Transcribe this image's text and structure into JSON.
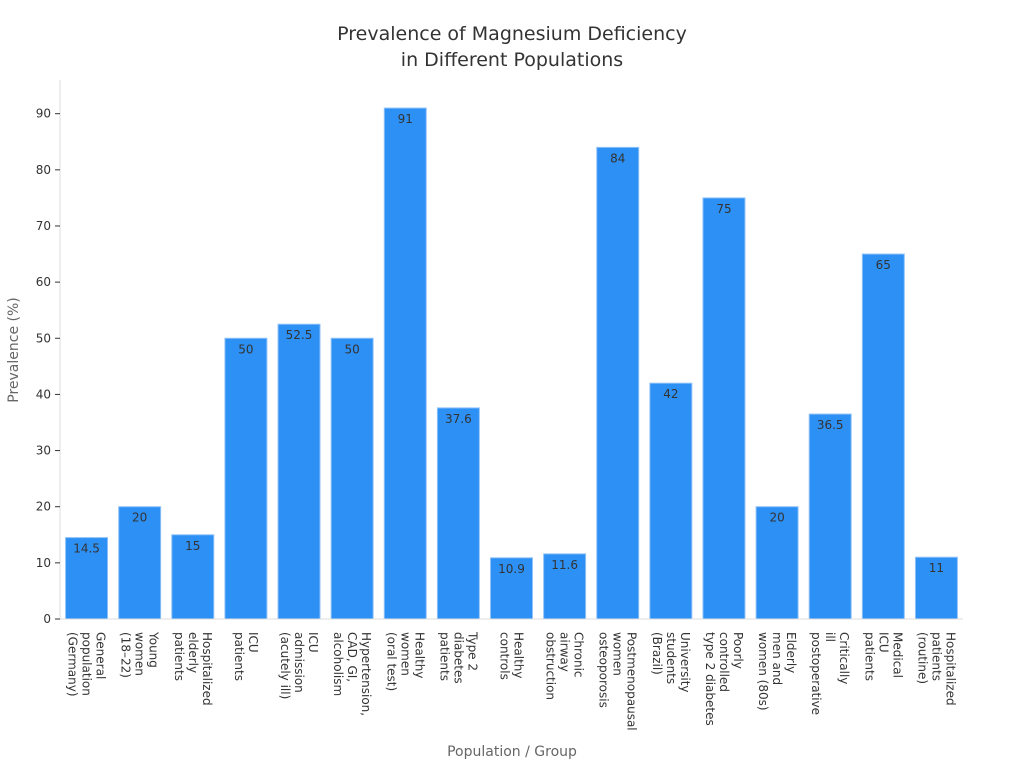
{
  "chart_data": {
    "type": "bar",
    "title": "Prevalence of Magnesium Deficiency\nin Different Populations",
    "x_label": "Population / Group",
    "y_label": "Prevalence (%)",
    "categories": [
      "General\npopulation\n(Germany)",
      "Young\nwomen\n(18–22)",
      "Hospitalized\nelderly\npatients",
      "ICU\npatients",
      "ICU\nadmission\n(acutely ill)",
      "Hypertension,\nCAD, GI,\nalcoholism",
      "Healthy\nwomen\n(oral test)",
      "Type 2\ndiabetes\npatients",
      "Healthy\ncontrols",
      "Chronic\nairway\nobstruction",
      "Postmenopausal\nwomen\nosteoporosis",
      "University\nstudents\n(Brazil)",
      "Poorly\ncontrolled\ntype 2 diabetes",
      "Elderly\nmen and\nwomen (80s)",
      "Critically\nill\npostoperative",
      "Medical\nICU\npatients",
      "Hospitalized\npatients\n(routine)"
    ],
    "values": [
      14.5,
      20,
      15,
      50,
      52.5,
      50,
      91,
      37.6,
      10.9,
      11.6,
      84,
      42,
      75,
      20,
      36.5,
      65,
      11
    ],
    "color": "#2d90f5",
    "ylim": [
      0,
      96
    ],
    "yticks": [
      0,
      10,
      20,
      30,
      40,
      50,
      60,
      70,
      80,
      90
    ]
  }
}
